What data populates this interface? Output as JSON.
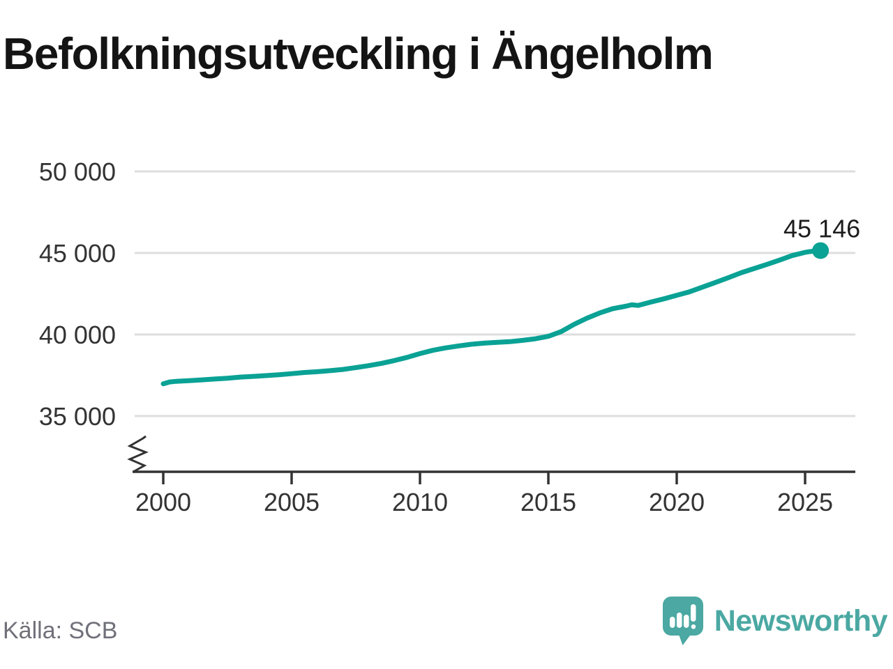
{
  "header": {
    "title": "Befolkningsutveckling i Ängelholm"
  },
  "footer": {
    "source": "Källa: SCB",
    "brand": "Newsworthy",
    "brand_icon": "newsworthy-speech-bubble-chart-icon"
  },
  "colors": {
    "line": "#0aa295",
    "end_dot": "#0aa295",
    "grid": "#dedede",
    "axis": "#333333",
    "tick_text": "#333333",
    "title_text": "#141414",
    "source_text": "#70707a",
    "brand_teal": "#4ba8a2",
    "background": "#ffffff"
  },
  "chart_data": {
    "type": "line",
    "title": "Befolkningsutveckling i Ängelholm",
    "source": "Källa: SCB",
    "xlabel": "",
    "ylabel": "",
    "x_axis": {
      "range": [
        2000,
        2026.3
      ],
      "ticks": [
        {
          "value": 2000,
          "label": "2000"
        },
        {
          "value": 2005,
          "label": "2005"
        },
        {
          "value": 2010,
          "label": "2010"
        },
        {
          "value": 2015,
          "label": "2015"
        },
        {
          "value": 2020,
          "label": "2020"
        },
        {
          "value": 2025,
          "label": "2025"
        }
      ]
    },
    "y_axis": {
      "range_shown": [
        35000,
        50000
      ],
      "axis_break": true,
      "grid": true,
      "ticks": [
        {
          "value": 50000,
          "label": "50 000"
        },
        {
          "value": 45000,
          "label": "45 000"
        },
        {
          "value": 40000,
          "label": "40 000"
        },
        {
          "value": 35000,
          "label": "35 000"
        }
      ]
    },
    "series": [
      {
        "name": "Befolkning Ängelholm",
        "points": [
          [
            2000.0,
            36980
          ],
          [
            2000.25,
            37090
          ],
          [
            2000.5,
            37130
          ],
          [
            2001.0,
            37170
          ],
          [
            2001.5,
            37220
          ],
          [
            2002.0,
            37270
          ],
          [
            2002.5,
            37320
          ],
          [
            2003.0,
            37390
          ],
          [
            2003.5,
            37430
          ],
          [
            2004.0,
            37480
          ],
          [
            2004.5,
            37530
          ],
          [
            2005.0,
            37600
          ],
          [
            2005.5,
            37670
          ],
          [
            2006.0,
            37720
          ],
          [
            2006.5,
            37780
          ],
          [
            2007.0,
            37860
          ],
          [
            2007.5,
            37970
          ],
          [
            2008.0,
            38090
          ],
          [
            2008.5,
            38230
          ],
          [
            2009.0,
            38400
          ],
          [
            2009.5,
            38600
          ],
          [
            2010.0,
            38830
          ],
          [
            2010.5,
            39030
          ],
          [
            2011.0,
            39180
          ],
          [
            2011.5,
            39300
          ],
          [
            2012.0,
            39400
          ],
          [
            2012.5,
            39470
          ],
          [
            2013.0,
            39520
          ],
          [
            2013.5,
            39560
          ],
          [
            2014.0,
            39640
          ],
          [
            2014.5,
            39740
          ],
          [
            2015.0,
            39890
          ],
          [
            2015.5,
            40180
          ],
          [
            2016.0,
            40620
          ],
          [
            2016.5,
            41000
          ],
          [
            2017.0,
            41320
          ],
          [
            2017.5,
            41580
          ],
          [
            2018.0,
            41730
          ],
          [
            2018.25,
            41820
          ],
          [
            2018.5,
            41780
          ],
          [
            2019.0,
            41990
          ],
          [
            2019.5,
            42190
          ],
          [
            2020.0,
            42400
          ],
          [
            2020.5,
            42620
          ],
          [
            2021.0,
            42900
          ],
          [
            2021.5,
            43190
          ],
          [
            2022.0,
            43480
          ],
          [
            2022.5,
            43780
          ],
          [
            2023.0,
            44040
          ],
          [
            2023.5,
            44290
          ],
          [
            2024.0,
            44560
          ],
          [
            2024.5,
            44840
          ],
          [
            2025.0,
            45040
          ],
          [
            2025.3,
            45110
          ],
          [
            2025.6,
            45146
          ]
        ]
      }
    ],
    "end_label": {
      "text": "45 146",
      "value": 45146,
      "x": 2025.6
    },
    "legend": "none"
  }
}
